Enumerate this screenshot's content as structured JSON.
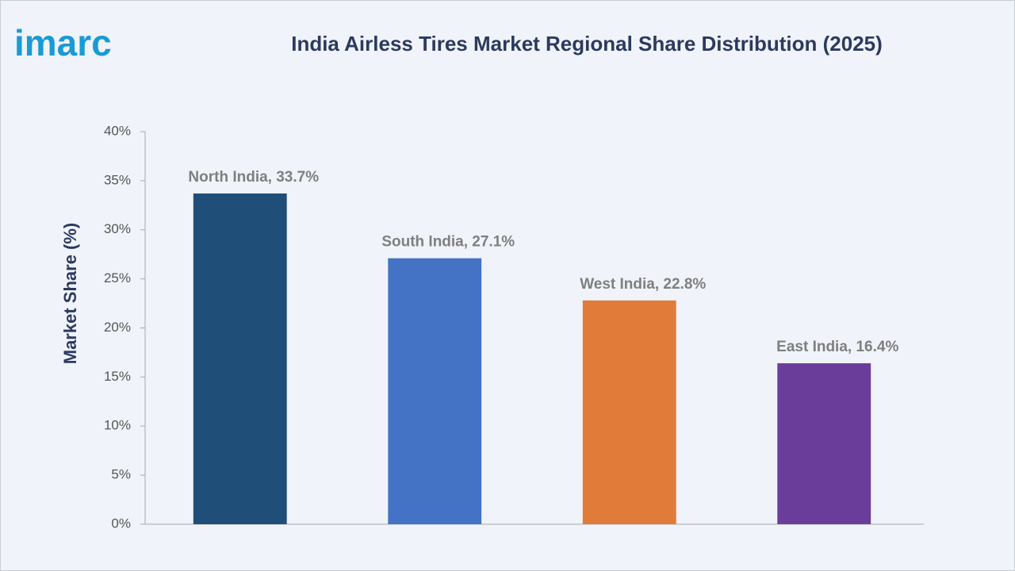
{
  "logo": "imarc",
  "chart_data": {
    "type": "bar",
    "title": "India Airless Tires Market Regional Share Distribution (2025)",
    "y_label": "Market Share (%)",
    "values": [
      33.7,
      27.1,
      22.8,
      16.4
    ],
    "value_labels": [
      "North India, 33.7%",
      "South India, 27.1%",
      "West India, 22.8%",
      "East India, 16.4%"
    ],
    "colors": [
      "#1f4e79",
      "#4472c4",
      "#e07b39",
      "#6a3d9a"
    ],
    "ylim": [
      0,
      40
    ],
    "yticks": [
      {
        "value": 0,
        "label": "0%"
      },
      {
        "value": 5,
        "label": "5%"
      },
      {
        "value": 10,
        "label": "10%"
      },
      {
        "value": 15,
        "label": "15%"
      },
      {
        "value": 20,
        "label": "20%"
      },
      {
        "value": 25,
        "label": "25%"
      },
      {
        "value": 30,
        "label": "30%"
      },
      {
        "value": 35,
        "label": "35%"
      },
      {
        "value": 40,
        "label": "40%"
      }
    ],
    "grid": false
  }
}
